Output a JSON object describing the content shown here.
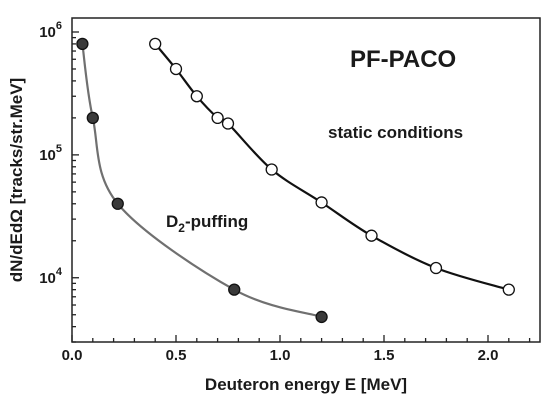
{
  "chart_data": {
    "type": "scatter",
    "title": "PF-PACO",
    "xlabel": "Deuteron energy E [MeV]",
    "ylabel": "dN/dEdΩ  [tracks/str.MeV]",
    "xlim": [
      0.0,
      2.25
    ],
    "ylim": [
      3000,
      1300000
    ],
    "yscale": "log",
    "grid": false,
    "x_ticks": [
      "0.0",
      "0.5",
      "1.0",
      "1.5",
      "2.0"
    ],
    "y_ticks": [
      {
        "base": "10",
        "exp": "4"
      },
      {
        "base": "10",
        "exp": "5"
      },
      {
        "base": "10",
        "exp": "6"
      }
    ],
    "series": [
      {
        "label_main": "D",
        "label_sub": "2",
        "label_rest": "-puffing",
        "marker": "filled-circle",
        "curve_color": "#707070",
        "x": [
          0.05,
          0.1,
          0.22,
          0.78,
          1.2
        ],
        "y": [
          800000,
          200000,
          40000,
          8000,
          4800
        ]
      },
      {
        "label": "static conditions",
        "marker": "open-circle",
        "curve_color": "#111111",
        "x": [
          0.4,
          0.5,
          0.6,
          0.7,
          0.75,
          0.96,
          1.2,
          1.44,
          1.75,
          2.1
        ],
        "y": [
          800000,
          500000,
          300000,
          200000,
          180000,
          76000,
          41000,
          22000,
          12000,
          8000
        ]
      }
    ]
  }
}
